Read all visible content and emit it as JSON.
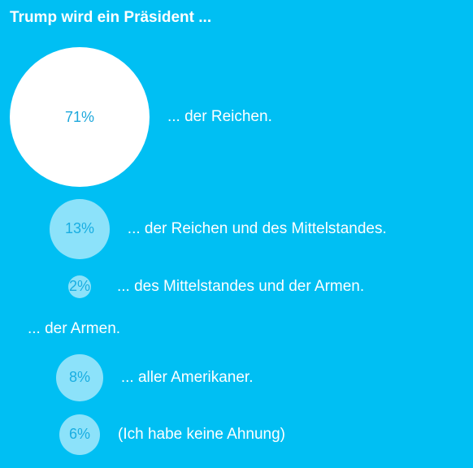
{
  "chart_data": {
    "type": "bubble",
    "title": "Trump wird ein Präsident ...",
    "categories": [
      "... der Reichen.",
      "... der Reichen und des Mittelstandes.",
      "... des Mittelstandes und der Armen.",
      "... der Armen.",
      "... aller Amerikaner.",
      "(Ich habe keine Ahnung)"
    ],
    "values": [
      71,
      13,
      2,
      0,
      8,
      6
    ],
    "value_labels": [
      "71%",
      "13%",
      "2%",
      "",
      "8%",
      "6%"
    ],
    "colors": {
      "background": "#00bff3",
      "largest_bubble": "#ffffff",
      "other_bubbles": "#8fe3fb",
      "value_text": "#1aaee0",
      "label_text": "#ffffff"
    }
  }
}
